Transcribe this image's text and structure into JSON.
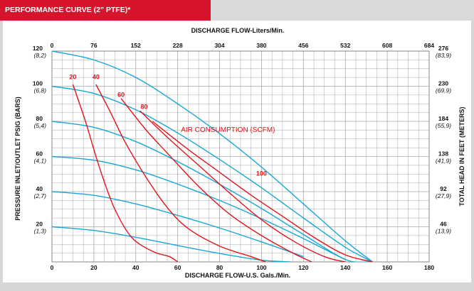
{
  "header": {
    "title": "PERFORMANCE CURVE (2\" PTFE)*"
  },
  "chart_data": {
    "type": "line",
    "title": "PERFORMANCE CURVE (2\" PTFE)*",
    "xlabel_bottom": "DISCHARGE FLOW-U.S. Gals./Min.",
    "xlabel_top": "DISCHARGE FLOW-Liters/Min.",
    "ylabel_left": "PRESSURE INLET/OUTLET PSIG (BARS)",
    "ylabel_right": "TOTAL HEAD IN FEET (METERS)",
    "xlim": [
      0,
      180
    ],
    "ylim": [
      0,
      120
    ],
    "grid": true,
    "x_ticks_bottom": [
      "0",
      "20",
      "40",
      "60",
      "80",
      "100",
      "120",
      "140",
      "160",
      "180"
    ],
    "x_ticks_top": [
      "0",
      "76",
      "152",
      "228",
      "304",
      "380",
      "456",
      "532",
      "608",
      "684"
    ],
    "y_ticks_left": [
      {
        "value": 120,
        "label": "120",
        "sub": "(8,2)"
      },
      {
        "value": 100,
        "label": "100",
        "sub": "(6,8)"
      },
      {
        "value": 80,
        "label": "80",
        "sub": "(5,4)"
      },
      {
        "value": 60,
        "label": "60",
        "sub": "(4,1)"
      },
      {
        "value": 40,
        "label": "40",
        "sub": "(2,7)"
      },
      {
        "value": 20,
        "label": "20",
        "sub": "(1,3)"
      }
    ],
    "y_ticks_right": [
      {
        "value": 120,
        "label": "276",
        "sub": "(83,9)"
      },
      {
        "value": 100,
        "label": "230",
        "sub": "(69,9)"
      },
      {
        "value": 80,
        "label": "184",
        "sub": "(55,9)"
      },
      {
        "value": 60,
        "label": "138",
        "sub": "(41,9)"
      },
      {
        "value": 40,
        "label": "92",
        "sub": "(27,9)"
      },
      {
        "value": 20,
        "label": "46",
        "sub": "(13,9)"
      }
    ],
    "pressure_curves": [
      {
        "x": [
          0,
          20,
          40,
          60,
          80,
          100,
          120,
          140,
          153
        ],
        "y": [
          120,
          115,
          105,
          90,
          73,
          54,
          33,
          12,
          0
        ]
      },
      {
        "x": [
          0,
          20,
          40,
          60,
          80,
          100,
          120,
          140,
          153
        ],
        "y": [
          100,
          95.9,
          86.6,
          73.4,
          58.3,
          42.2,
          25,
          8.3,
          0
        ]
      },
      {
        "x": [
          0,
          20,
          40,
          60,
          80,
          100,
          120,
          140,
          151
        ],
        "y": [
          80,
          76.6,
          68.5,
          57.1,
          44.2,
          30.4,
          15.6,
          1.4,
          0
        ]
      },
      {
        "x": [
          0,
          20,
          40,
          60,
          80,
          100,
          120,
          140
        ],
        "y": [
          60,
          57.9,
          52.4,
          44.3,
          35,
          24.6,
          13.3,
          1.2
        ]
      },
      {
        "x": [
          0,
          20,
          40,
          60,
          80,
          100,
          120
        ],
        "y": [
          40,
          37.9,
          33,
          26.5,
          19.3,
          11.4,
          3
        ]
      },
      {
        "x": [
          0,
          20,
          40,
          60,
          80,
          100,
          114
        ],
        "y": [
          20,
          17.9,
          14,
          9.3,
          4.8,
          1,
          0
        ]
      }
    ],
    "series": [
      {
        "name": "20",
        "x": [
          10,
          16,
          20,
          24,
          30,
          38,
          48,
          56,
          60
        ],
        "y": [
          101,
          80,
          64,
          49,
          30,
          14,
          6,
          3,
          0
        ]
      },
      {
        "name": "40",
        "x": [
          21,
          28,
          35,
          45,
          55,
          65,
          80,
          95,
          102
        ],
        "y": [
          101,
          85,
          68,
          48,
          31,
          19,
          9,
          3,
          0
        ]
      },
      {
        "name": "60",
        "x": [
          33,
          45,
          55,
          70,
          85,
          100,
          115,
          124
        ],
        "y": [
          93,
          75,
          62,
          43,
          27,
          15,
          5,
          0
        ]
      },
      {
        "name": "80",
        "x": [
          42,
          55,
          70,
          85,
          100,
          115,
          130,
          140
        ],
        "y": [
          86,
          71,
          55,
          39,
          24,
          12,
          3,
          0
        ]
      },
      {
        "name": "100",
        "x": [
          48,
          65,
          80,
          95,
          110,
          125,
          140,
          153
        ],
        "y": [
          80,
          64,
          51,
          38,
          26,
          14,
          4,
          0
        ]
      }
    ],
    "series_label_positions": [
      {
        "name": "20",
        "x": 10,
        "y": 104
      },
      {
        "name": "40",
        "x": 21,
        "y": 104
      },
      {
        "name": "60",
        "x": 33,
        "y": 94
      },
      {
        "name": "80",
        "x": 44,
        "y": 87
      },
      {
        "name": "100",
        "x": 100,
        "y": 49
      }
    ],
    "annotation": {
      "text": "AIR CONSUMPTION (SCFM)",
      "x": 84,
      "y": 74
    },
    "colors": {
      "pressure": "#16a7d9",
      "air": "#e2141c",
      "grid": "#9a9a9a",
      "header": "#d6142b"
    }
  }
}
